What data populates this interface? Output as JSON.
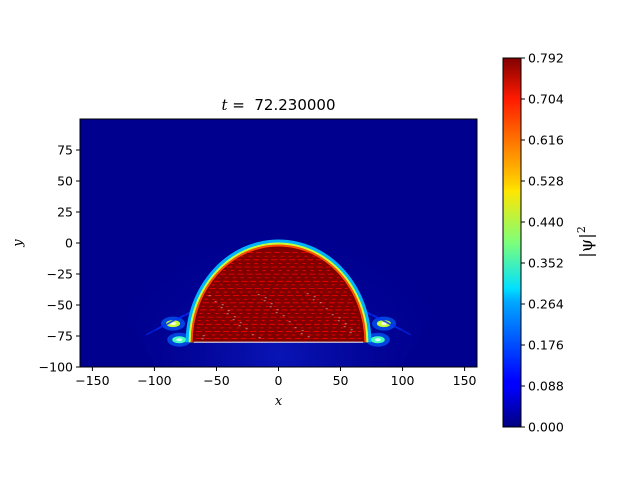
{
  "chart_data": {
    "type": "heatmap",
    "title_prefix": "t",
    "title_eq": " =  ",
    "title_value": "72.230000",
    "xlabel": "x",
    "ylabel": "y",
    "xlim": [
      -160,
      160
    ],
    "ylim": [
      -100,
      100
    ],
    "x_ticks": [
      -150,
      -100,
      -50,
      0,
      50,
      100,
      150
    ],
    "y_ticks": [
      -100,
      -75,
      -50,
      -25,
      0,
      25,
      50,
      75
    ],
    "x_tick_labels": [
      "−150",
      "−100",
      "−50",
      "0",
      "50",
      "100",
      "150"
    ],
    "y_tick_labels": [
      "−100",
      "−75",
      "−50",
      "−25",
      "0",
      "25",
      "50",
      "75"
    ],
    "colormap": "jet",
    "colorbar": {
      "label_main": "|ψ|",
      "label_exp": "2",
      "min": 0.0,
      "max": 0.792,
      "ticks": [
        0.0,
        0.088,
        0.176,
        0.264,
        0.352,
        0.44,
        0.528,
        0.616,
        0.704,
        0.792
      ],
      "tick_labels": [
        "0.000",
        "0.088",
        "0.176",
        "0.264",
        "0.352",
        "0.440",
        "0.528",
        "0.616",
        "0.704",
        "0.792"
      ]
    },
    "features": {
      "dome": {
        "center_x": 0,
        "base_y": -80,
        "top_y": -2,
        "half_width": 70,
        "value": 0.792,
        "rim_value": 0.45
      },
      "side_lobes": [
        {
          "x": -85,
          "y": -65,
          "value": 0.45
        },
        {
          "x": -80,
          "y": -78,
          "value": 0.35
        },
        {
          "x": 85,
          "y": -65,
          "value": 0.45
        },
        {
          "x": 80,
          "y": -78,
          "value": 0.35
        }
      ],
      "background_value": 0.0
    },
    "grid": false
  }
}
